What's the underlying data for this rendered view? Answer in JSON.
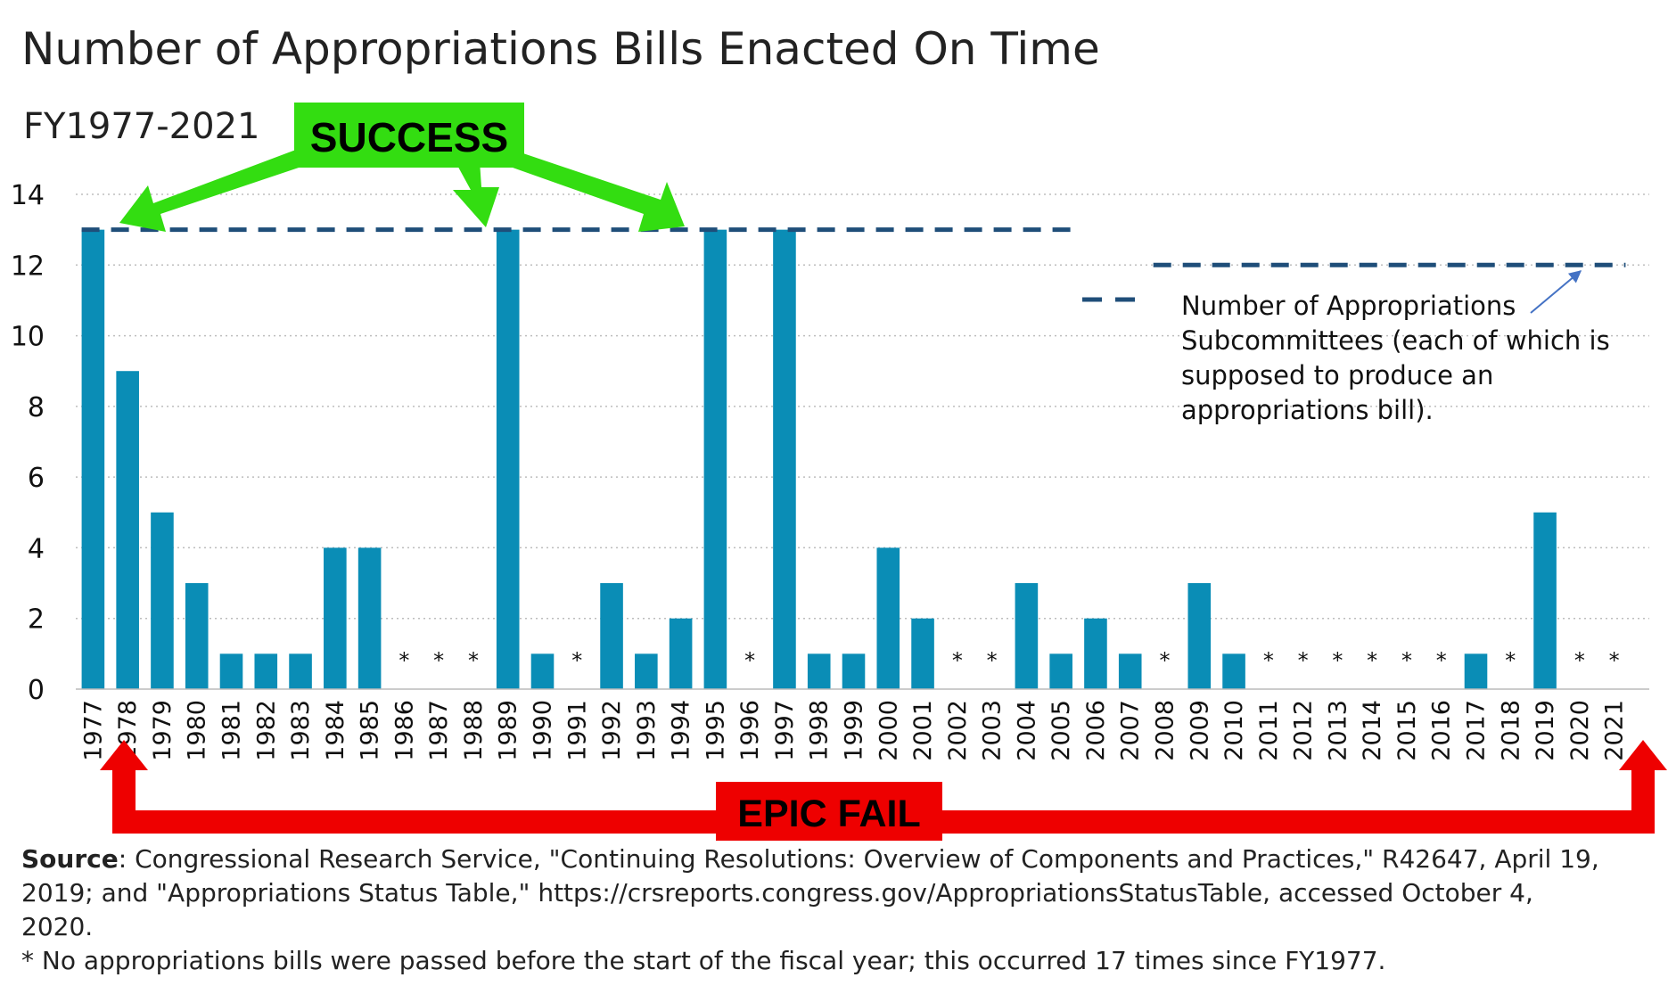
{
  "chart_data": {
    "type": "bar",
    "title": "Number of Appropriations Bills Enacted On Time",
    "subtitle": "FY1977-2021",
    "categories": [
      "1977",
      "1978",
      "1979",
      "1980",
      "1981",
      "1982",
      "1983",
      "1984",
      "1985",
      "1986",
      "1987",
      "1988",
      "1989",
      "1990",
      "1991",
      "1992",
      "1993",
      "1994",
      "1995",
      "1996",
      "1997",
      "1998",
      "1999",
      "2000",
      "2001",
      "2002",
      "2003",
      "2004",
      "2005",
      "2006",
      "2007",
      "2008",
      "2009",
      "2010",
      "2011",
      "2012",
      "2013",
      "2014",
      "2015",
      "2016",
      "2017",
      "2018",
      "2019",
      "2020",
      "2021"
    ],
    "values": [
      13,
      9,
      5,
      3,
      1,
      1,
      1,
      4,
      4,
      0,
      0,
      0,
      13,
      1,
      0,
      3,
      1,
      2,
      13,
      0,
      13,
      1,
      1,
      4,
      2,
      0,
      0,
      3,
      1,
      2,
      1,
      0,
      3,
      1,
      0,
      0,
      0,
      0,
      0,
      0,
      1,
      0,
      5,
      0,
      0
    ],
    "zero_marker": "*",
    "ylim": [
      0,
      14
    ],
    "yticks": [
      "0",
      "2",
      "4",
      "6",
      "8",
      "10",
      "12",
      "14"
    ],
    "grid": "horizontal dotted",
    "bar_color": "#0a8db6",
    "subcommittee_line": {
      "segments": [
        {
          "from": "1977",
          "to": "2005",
          "value": 13
        },
        {
          "from": "2008",
          "to": "2021",
          "value": 12
        }
      ],
      "color": "#1f4e79",
      "style": "dashed"
    },
    "legend": {
      "position": "right",
      "lines": [
        "Number of Appropriations",
        "Subcommittees (each of which is",
        "supposed to produce an",
        "appropriations bill)."
      ]
    },
    "annotations": {
      "success": {
        "label": "SUCCESS",
        "color": "#33dd11",
        "targets": [
          "1977",
          "1989",
          "1995"
        ]
      },
      "epic_fail": {
        "label": "EPIC FAIL",
        "color": "#ee0000",
        "from": "1978",
        "to": "2021"
      }
    }
  },
  "source": {
    "label": "Source",
    "lines": [
      ": Congressional Research Service, \"Continuing Resolutions: Overview of Components and Practices,\"  R42647, April 19,",
      "2019; and \"Appropriations Status Table,\" https://crsreports.congress.gov/AppropriationsStatusTable, accessed October 4,",
      "2020."
    ],
    "footnote": "* No appropriations bills were passed before the start of the fiscal year; this occurred 17 times since FY1977."
  }
}
